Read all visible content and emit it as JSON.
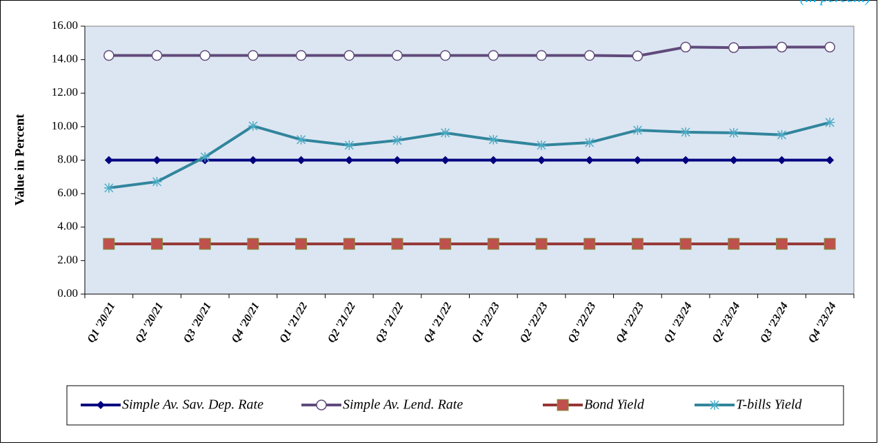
{
  "chart_data": {
    "type": "line",
    "subtitle": "(in percent)",
    "y_label": "Value in Percent",
    "categories": [
      "Q1 '20/21",
      "Q2 '20/21",
      "Q3 '20/21",
      "Q4 '20/21",
      "Q1 '21/22",
      "Q2 '21/22",
      "Q3 '21/22",
      "Q4 '21/22",
      "Q1 '22/23",
      "Q2 '22/23",
      "Q3 '22/23",
      "Q4 '22/23",
      "Q1 '23/24",
      "Q2 '23/24",
      "Q3 '23/24",
      "Q4 '23/24"
    ],
    "series": [
      {
        "name": "Simple Av. Sav. Dep. Rate",
        "color": "#000080",
        "marker": "diamond",
        "values": [
          8,
          8,
          8,
          8,
          8,
          8,
          8,
          8,
          8,
          8,
          8,
          8,
          8,
          8,
          8,
          8
        ]
      },
      {
        "name": "Simple Av. Lend. Rate",
        "color": "#604a7b",
        "marker": "circle",
        "values": [
          14.25,
          14.25,
          14.25,
          14.25,
          14.25,
          14.25,
          14.25,
          14.25,
          14.25,
          14.25,
          14.25,
          14.22,
          14.75,
          14.72,
          14.75,
          14.75
        ]
      },
      {
        "name": "Bond Yield",
        "color": "#953735",
        "marker": "square",
        "values": [
          3,
          3,
          3,
          3,
          3,
          3,
          3,
          3,
          3,
          3,
          3,
          3,
          3,
          3,
          3,
          3
        ]
      },
      {
        "name": "T-bills Yield",
        "color": "#31859c",
        "marker": "star",
        "values": [
          6.34,
          6.71,
          8.19,
          10.04,
          9.22,
          8.89,
          9.18,
          9.63,
          9.22,
          8.89,
          9.05,
          9.79,
          9.67,
          9.63,
          9.51,
          10.25
        ]
      }
    ],
    "ylim": [
      0,
      16
    ],
    "yticks": [
      {
        "value": 0,
        "label": "0.00"
      },
      {
        "value": 2,
        "label": "2.00"
      },
      {
        "value": 4,
        "label": "4.00"
      },
      {
        "value": 6,
        "label": "6.00"
      },
      {
        "value": 8,
        "label": "8.00"
      },
      {
        "value": 10,
        "label": "10.00"
      },
      {
        "value": 12,
        "label": "12.00"
      },
      {
        "value": 14,
        "label": "14.00"
      },
      {
        "value": 16,
        "label": "16.00"
      }
    ],
    "legend": "bottom"
  }
}
